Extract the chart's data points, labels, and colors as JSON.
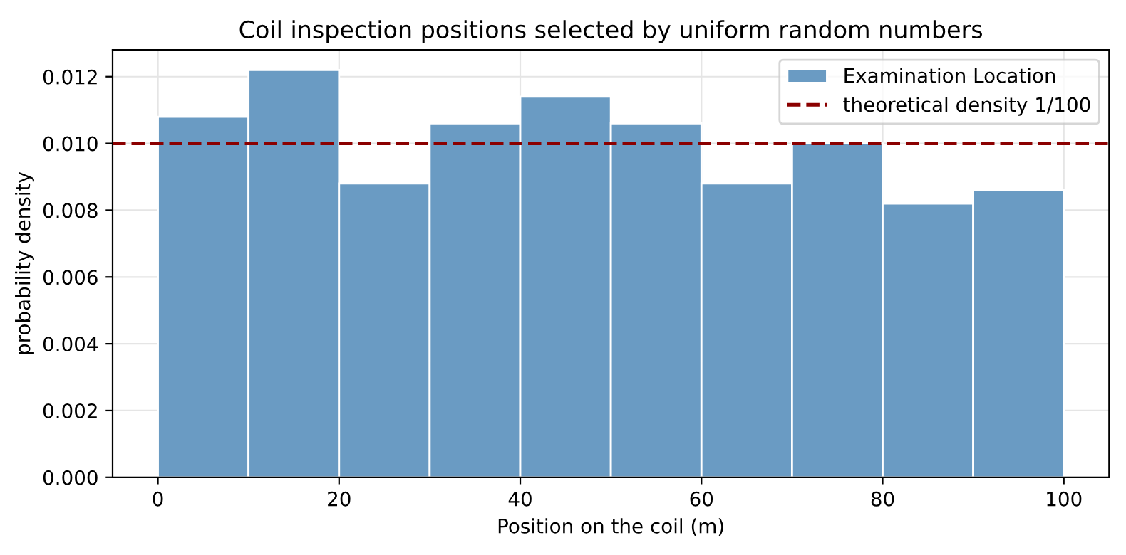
{
  "chart_data": {
    "type": "histogram",
    "title": "Coil inspection positions selected by uniform random numbers",
    "xlabel": "Position on the coil (m)",
    "ylabel": "probability density",
    "bins": [
      0,
      10,
      20,
      30,
      40,
      50,
      60,
      70,
      80,
      90,
      100
    ],
    "series": [
      {
        "name": "Examination Location",
        "color": "#6a9bc3",
        "values": [
          0.0108,
          0.0122,
          0.0088,
          0.0106,
          0.0114,
          0.0106,
          0.0088,
          0.01,
          0.0082,
          0.0086
        ]
      }
    ],
    "ref_lines": [
      {
        "axis": "y",
        "value": 0.01,
        "label": "theoretical density 1/100",
        "color": "#8b0000",
        "line_style": "dashed"
      }
    ],
    "xlim": [
      -5,
      105
    ],
    "ylim": [
      0,
      0.0128
    ],
    "xticks": [
      0,
      20,
      40,
      60,
      80,
      100
    ],
    "yticks": [
      {
        "value": 0,
        "label": "0.000"
      },
      {
        "value": 0.002,
        "label": "0.002"
      },
      {
        "value": 0.004,
        "label": "0.004"
      },
      {
        "value": 0.006,
        "label": "0.006"
      },
      {
        "value": 0.008,
        "label": "0.008"
      },
      {
        "value": 0.01,
        "label": "0.010"
      },
      {
        "value": 0.012,
        "label": "0.012"
      }
    ],
    "grid": true,
    "legend": "top right"
  }
}
